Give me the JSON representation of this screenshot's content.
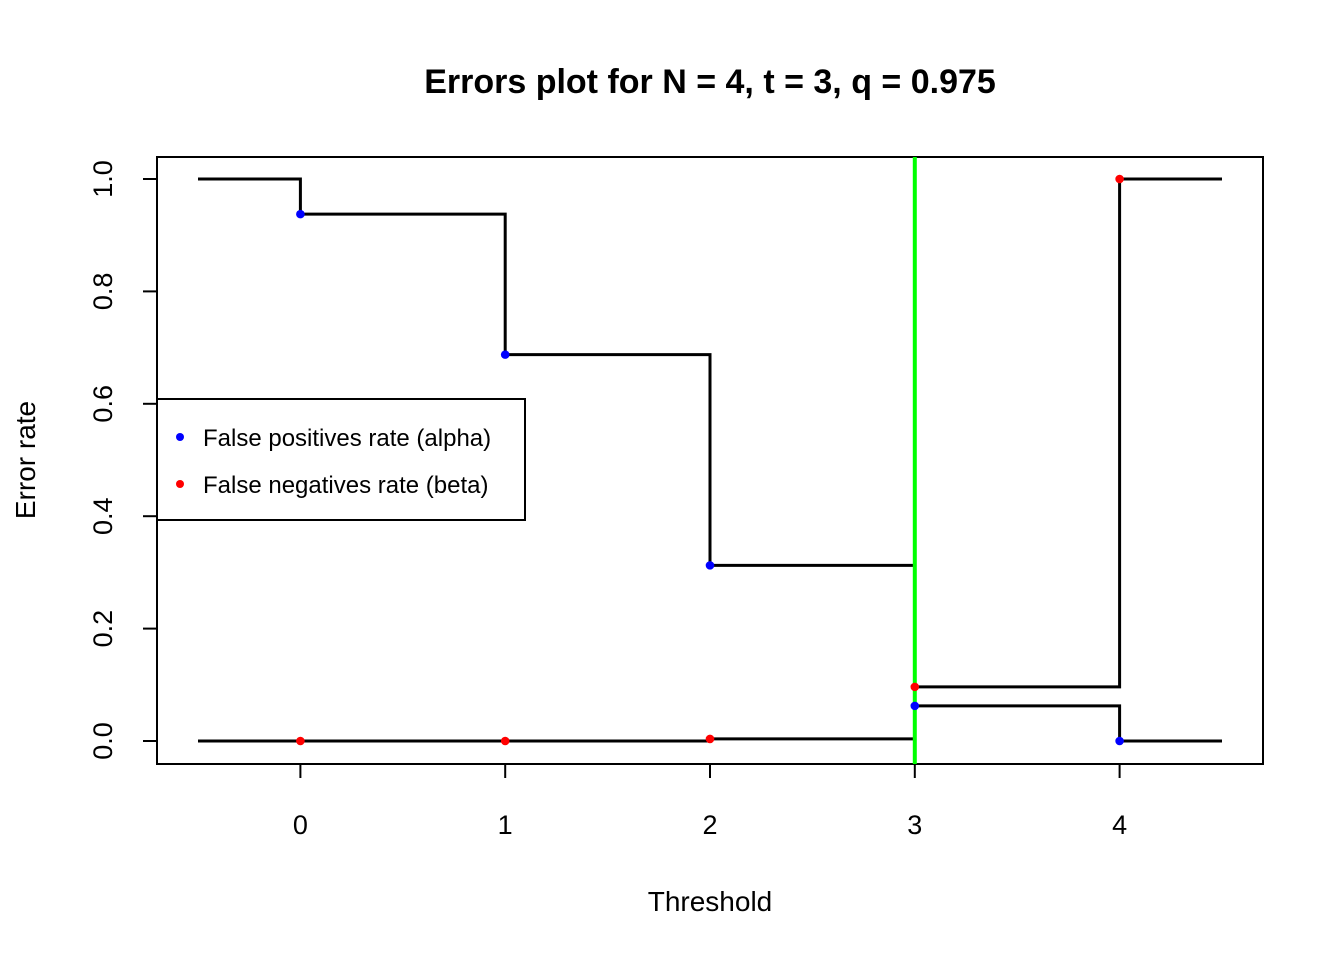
{
  "chart_data": {
    "type": "line",
    "title": "Errors plot for N = 4, t = 3, q = 0.975",
    "xlabel": "Threshold",
    "ylabel": "Error rate",
    "xlim": [
      -0.5,
      4.5
    ],
    "ylim": [
      0,
      1
    ],
    "x_ticks": [
      0,
      1,
      2,
      3,
      4
    ],
    "y_ticks": [
      0.0,
      0.2,
      0.4,
      0.6,
      0.8,
      1.0
    ],
    "y_tick_labels": [
      "0.0",
      "0.2",
      "0.4",
      "0.6",
      "0.8",
      "1.0"
    ],
    "x": [
      0,
      1,
      2,
      3,
      4
    ],
    "series": [
      {
        "name": "False positives rate (alpha)",
        "values": [
          0.9375,
          0.6875,
          0.3125,
          0.0625,
          0.0
        ],
        "start_value": 1.0,
        "color": "#0000ff",
        "step_color": "#000000"
      },
      {
        "name": "False negatives rate (beta)",
        "values": [
          0.0,
          0.0,
          0.0037,
          0.0963,
          1.0
        ],
        "start_value": 0.0,
        "color": "#ff0000",
        "step_color": "#000000"
      }
    ],
    "reference_line": {
      "x": 3,
      "color": "#00ff00"
    },
    "legend": {
      "position": "left"
    },
    "grid": false
  }
}
